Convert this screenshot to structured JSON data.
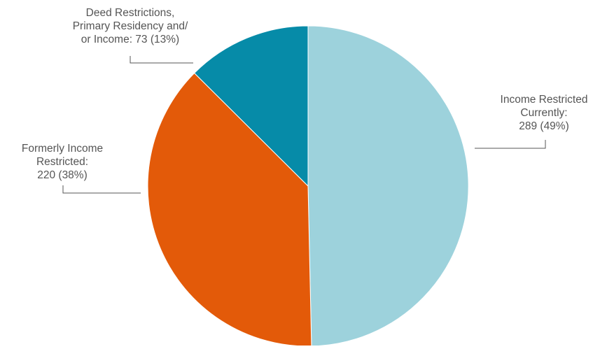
{
  "chart_data": {
    "type": "pie",
    "title": "",
    "slices": [
      {
        "label": "Income Restricted Currently:",
        "value": 289,
        "percent": "49%",
        "color": "#9dd2dc",
        "label_lines": [
          "Income Restricted",
          "Currently:",
          "289 (49%)"
        ]
      },
      {
        "label": "Formerly Income Restricted:",
        "value": 220,
        "percent": "38%",
        "color": "#e35a09",
        "label_lines": [
          "Formerly Income",
          "Restricted:",
          "220 (38%)"
        ]
      },
      {
        "label": "Deed Restrictions, Primary Residency and/ or Income:",
        "value": 73,
        "percent": "13%",
        "color": "#068ba8",
        "label_lines": [
          "Deed Restrictions,",
          "Primary Residency and/",
          "or Income: 73 (13%)"
        ]
      }
    ]
  }
}
